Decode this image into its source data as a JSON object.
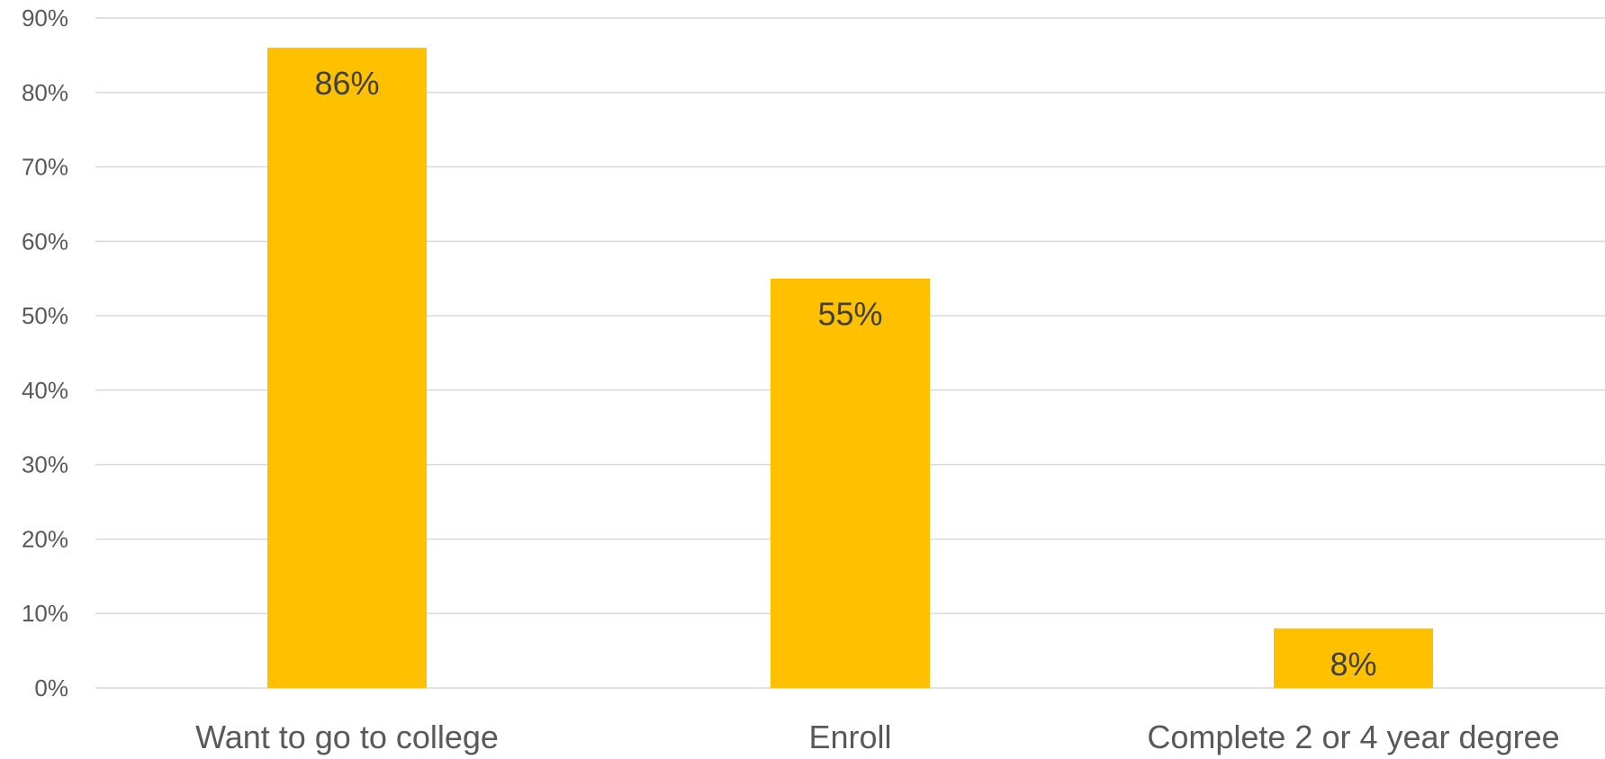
{
  "chart_data": {
    "type": "bar",
    "categories": [
      "Want to go to college",
      "Enroll",
      "Complete 2 or 4 year degree"
    ],
    "values": [
      86,
      55,
      8
    ],
    "data_labels": [
      "86%",
      "55%",
      "8%"
    ],
    "title": "",
    "xlabel": "",
    "ylabel": "",
    "ylim": [
      0,
      90
    ],
    "y_ticks": [
      0,
      10,
      20,
      30,
      40,
      50,
      60,
      70,
      80,
      90
    ],
    "y_tick_labels": [
      "0%",
      "10%",
      "20%",
      "30%",
      "40%",
      "50%",
      "60%",
      "70%",
      "80%",
      "90%"
    ],
    "grid": true,
    "legend": "none",
    "colors": {
      "bar": "#FFC000",
      "gridline": "#D9D9D9",
      "tick_text": "#595959",
      "label_text": "#404040"
    }
  }
}
